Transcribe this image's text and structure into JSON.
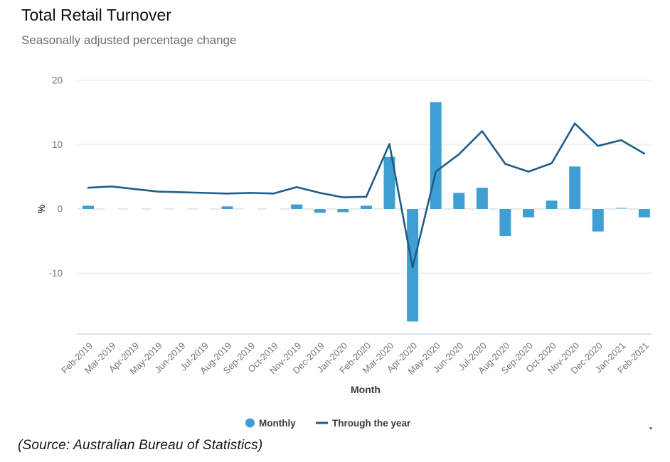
{
  "header": {
    "title": "Total Retail Turnover",
    "subtitle": "Seasonally adjusted percentage change"
  },
  "source_note": "(Source: Australian Bureau of Statistics)",
  "chart_data": {
    "type": "bar",
    "subtype": "bar+line combo",
    "title": "Total Retail Turnover",
    "subtitle": "Seasonally adjusted percentage change",
    "xlabel": "Month",
    "ylabel": "%",
    "y_ticks": [
      20,
      10,
      0,
      -10
    ],
    "ylim": [
      -19.4,
      20
    ],
    "grid": true,
    "legend_position": "bottom-center",
    "categories": [
      "Feb-2019",
      "Mar-2019",
      "Apr-2019",
      "May-2019",
      "Jun-2019",
      "Jul-2019",
      "Aug-2019",
      "Sep-2019",
      "Oct-2019",
      "Nov-2019",
      "Dec-2019",
      "Jan-2020",
      "Feb-2020",
      "Mar-2020",
      "Apr-2020",
      "May-2020",
      "Jun-2020",
      "Jul-2020",
      "Aug-2020",
      "Sep-2020",
      "Oct-2020",
      "Nov-2020",
      "Dec-2020",
      "Jan-2021",
      "Feb-2021"
    ],
    "series": [
      {
        "name": "Monthly",
        "type": "bar",
        "color": "#3f9fd3",
        "values": [
          0.5,
          0,
          0,
          0,
          0,
          0,
          0.4,
          0,
          0,
          0.7,
          -0.6,
          -0.5,
          0.5,
          8.1,
          -17.5,
          16.6,
          2.5,
          3.3,
          -4.2,
          -1.3,
          1.3,
          6.6,
          -3.5,
          0.2,
          -1.3
        ]
      },
      {
        "name": "Through the year",
        "type": "line",
        "color": "#1e5d88",
        "values": [
          3.3,
          3.5,
          3.1,
          2.7,
          2.6,
          2.5,
          2.4,
          2.5,
          2.4,
          3.4,
          2.5,
          1.8,
          1.9,
          10.1,
          -9.1,
          5.8,
          8.5,
          12.1,
          7.0,
          5.8,
          7.1,
          13.3,
          9.8,
          10.7,
          8.6
        ]
      }
    ],
    "colors": {
      "bar": "#3f9fd3",
      "line": "#1e5d88",
      "gridline": "#f1f1f1",
      "zero_line": "#e7e7e7",
      "axis_line": "#dce2f1",
      "tick_text": "#767676",
      "label_text": "#3d3d3d"
    }
  }
}
